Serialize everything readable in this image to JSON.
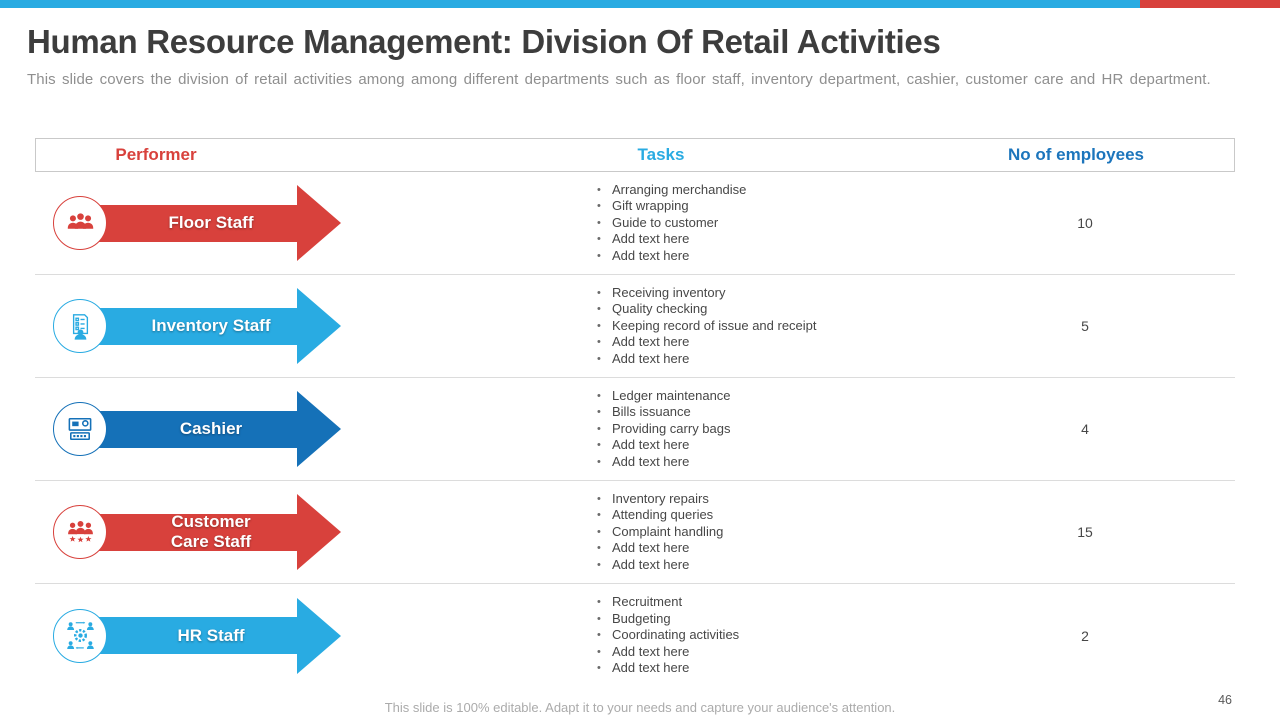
{
  "top_bar": {
    "left_color": "#29ABE2",
    "right_color": "#D8413C"
  },
  "header": {
    "title": "Human Resource Management: Division Of Retail Activities",
    "subtitle": "This slide covers the division of retail activities among among different departments such as floor staff, inventory department, cashier, customer care and HR department."
  },
  "table": {
    "columns": [
      "Performer",
      "Tasks",
      "No of employees"
    ],
    "column_colors": [
      "#D8413C",
      "#29ABE2",
      "#1C75BC"
    ],
    "rows": [
      {
        "performer": "Floor Staff",
        "icon": "floor-staff-icon",
        "color": "#D8413C",
        "tasks": [
          "Arranging merchandise",
          "Gift wrapping",
          "Guide to customer",
          "Add text here",
          "Add text here"
        ],
        "employees": "10"
      },
      {
        "performer": "Inventory Staff",
        "icon": "inventory-staff-icon",
        "color": "#29ABE2",
        "tasks": [
          "Receiving inventory",
          "Quality checking",
          "Keeping record of issue and receipt",
          "Add text here",
          "Add text here"
        ],
        "employees": "5"
      },
      {
        "performer": "Cashier",
        "icon": "cashier-icon",
        "color": "#1571B8",
        "tasks": [
          "Ledger maintenance",
          "Bills issuance",
          "Providing carry bags",
          "Add text here",
          "Add text here"
        ],
        "employees": "4"
      },
      {
        "performer": "Customer\nCare Staff",
        "icon": "customer-care-staff-icon",
        "color": "#D8413C",
        "tasks": [
          "Inventory repairs",
          "Attending queries",
          "Complaint handling",
          "Add text here",
          "Add text here"
        ],
        "employees": "15"
      },
      {
        "performer": "HR Staff",
        "icon": "hr-staff-icon",
        "color": "#29ABE2",
        "tasks": [
          "Recruitment",
          "Budgeting",
          "Coordinating activities",
          "Add text here",
          "Add text here"
        ],
        "employees": "2"
      }
    ]
  },
  "footer": {
    "note": "This slide is 100% editable. Adapt it to your needs and capture your audience's attention.",
    "page_number": "46"
  }
}
